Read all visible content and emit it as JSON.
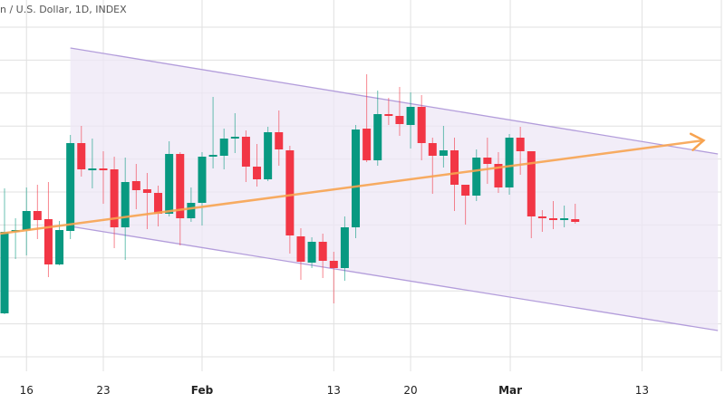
{
  "header": {
    "title": "n / U.S. Dollar, 1D, INDEX"
  },
  "colors": {
    "up": "#089981",
    "down": "#f23645",
    "channel_fill": "#ede7f6",
    "channel_line": "#b39ddb",
    "trend": "#f7a350",
    "grid": "#e0e0e0"
  },
  "chart_data": {
    "type": "candlestick",
    "title": "n / U.S. Dollar, 1D, INDEX",
    "x_ticks": [
      {
        "label": "16",
        "index": 2,
        "bold": false
      },
      {
        "label": "23",
        "index": 9,
        "bold": false
      },
      {
        "label": "Feb",
        "index": 18,
        "bold": true
      },
      {
        "label": "13",
        "index": 30,
        "bold": false
      },
      {
        "label": "20",
        "index": 37,
        "bold": false
      },
      {
        "label": "Mar",
        "index": 46,
        "bold": true
      },
      {
        "label": "13",
        "index": 58,
        "bold": false
      }
    ],
    "ylim": [
      0,
      40
    ],
    "candles": [
      [
        5.4,
        14.4,
        19.2,
        5.3
      ],
      [
        14.4,
        14.6,
        15.9,
        11.4
      ],
      [
        14.6,
        16.7,
        19.3,
        11.8
      ],
      [
        16.7,
        15.7,
        19.6,
        13.6
      ],
      [
        15.8,
        10.8,
        19.9,
        9.4
      ],
      [
        10.8,
        14.6,
        15.6,
        10.7
      ],
      [
        14.5,
        24.2,
        25.1,
        13.6
      ],
      [
        24.2,
        21.3,
        26.1,
        20.5
      ],
      [
        21.3,
        21.4,
        24.7,
        19.2
      ],
      [
        21.4,
        21.2,
        23.3,
        17.5
      ],
      [
        21.3,
        14.9,
        22.7,
        12.6
      ],
      [
        14.9,
        19.9,
        22.6,
        11.3
      ],
      [
        20.0,
        19.0,
        21.9,
        16.9
      ],
      [
        19.1,
        18.7,
        20.9,
        14.7
      ],
      [
        18.7,
        16.4,
        19.5,
        15.0
      ],
      [
        16.4,
        23.0,
        24.4,
        16.1
      ],
      [
        23.0,
        15.9,
        23.2,
        12.9
      ],
      [
        15.9,
        17.6,
        19.3,
        15.5
      ],
      [
        17.6,
        22.7,
        23.2,
        15.1
      ],
      [
        22.7,
        22.9,
        29.3,
        21.4
      ],
      [
        22.8,
        24.7,
        25.8,
        21.3
      ],
      [
        24.7,
        24.9,
        27.5,
        23.1
      ],
      [
        24.9,
        21.6,
        25.6,
        19.9
      ],
      [
        21.6,
        20.2,
        24.1,
        19.4
      ],
      [
        20.2,
        25.4,
        26.0,
        20.0
      ],
      [
        25.4,
        23.5,
        27.8,
        21.7
      ],
      [
        23.4,
        14.0,
        23.9,
        12.0
      ],
      [
        13.9,
        11.1,
        14.8,
        9.1
      ],
      [
        11.0,
        13.3,
        13.8,
        10.4
      ],
      [
        13.3,
        11.2,
        14.2,
        9.3
      ],
      [
        11.2,
        10.4,
        12.2,
        6.5
      ],
      [
        10.4,
        14.9,
        16.1,
        9.0
      ],
      [
        14.9,
        25.7,
        26.2,
        13.7
      ],
      [
        25.8,
        22.3,
        31.8,
        22.1
      ],
      [
        22.3,
        27.4,
        30.0,
        21.7
      ],
      [
        27.4,
        27.2,
        29.2,
        26.2
      ],
      [
        27.2,
        26.3,
        30.4,
        25.0
      ],
      [
        26.2,
        28.2,
        29.8,
        23.6
      ],
      [
        28.2,
        24.2,
        29.5,
        22.3
      ],
      [
        24.2,
        22.8,
        24.8,
        18.6
      ],
      [
        22.8,
        23.4,
        26.1,
        21.5
      ],
      [
        23.4,
        19.6,
        24.8,
        16.7
      ],
      [
        19.6,
        18.4,
        19.6,
        15.2
      ],
      [
        18.4,
        22.6,
        23.5,
        17.8
      ],
      [
        22.6,
        21.9,
        24.8,
        19.7
      ],
      [
        21.9,
        19.3,
        23.2,
        18.7
      ],
      [
        19.3,
        24.8,
        25.2,
        18.5
      ],
      [
        24.8,
        23.3,
        26.0,
        20.7
      ],
      [
        23.3,
        16.1,
        23.3,
        13.7
      ],
      [
        16.1,
        15.9,
        16.8,
        14.4
      ],
      [
        15.9,
        15.7,
        17.8,
        14.7
      ],
      [
        15.7,
        15.9,
        17.3,
        14.9
      ],
      [
        15.8,
        15.5,
        17.5,
        15.3
      ]
    ],
    "candle_format": [
      "open",
      "close",
      "high",
      "low"
    ],
    "drawings": {
      "channel_upper": [
        [
          6,
          34.7
        ],
        [
          65,
          23.0
        ]
      ],
      "channel_lower": [
        [
          6,
          15.0
        ],
        [
          65,
          3.5
        ]
      ],
      "trend_arrow": [
        [
          -0.4,
          14.2
        ],
        [
          63.7,
          24.5
        ]
      ]
    },
    "grid": true
  }
}
